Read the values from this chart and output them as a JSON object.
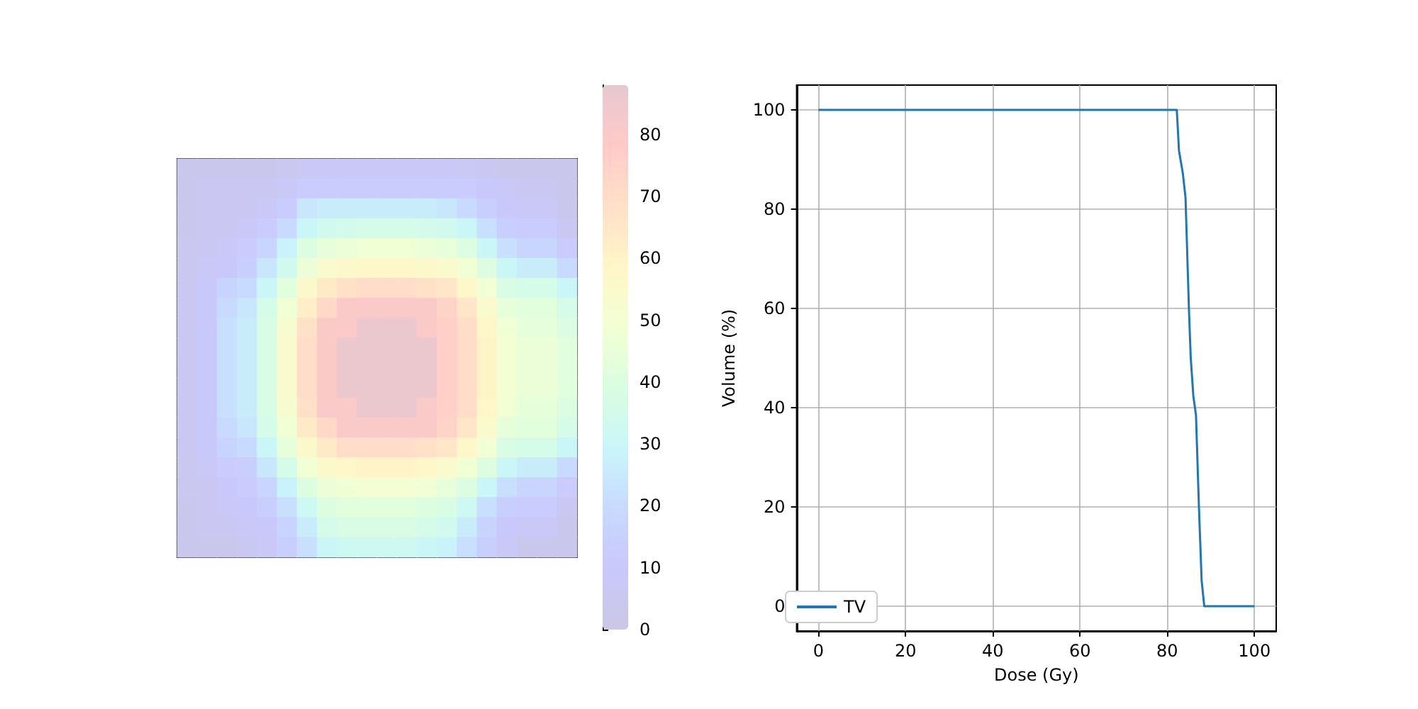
{
  "chart_data": [
    {
      "type": "heatmap",
      "categories": [
        null,
        null,
        null,
        null,
        null,
        null,
        null,
        null,
        null,
        null,
        null,
        null,
        null,
        null,
        null,
        null,
        null,
        null,
        null,
        null
      ],
      "y_categories": [
        null,
        null,
        null,
        null,
        null,
        null,
        null,
        null,
        null,
        null,
        null,
        null,
        null,
        null,
        null,
        null,
        null,
        null,
        null,
        null
      ],
      "clim": [
        0,
        88
      ],
      "cticks": [
        0,
        10,
        20,
        30,
        40,
        50,
        60,
        70,
        80
      ],
      "cells": [
        [
          4,
          4,
          4,
          4,
          4,
          5,
          7,
          8,
          8,
          8,
          8,
          8,
          8,
          8,
          7,
          6,
          4,
          4,
          4,
          4
        ],
        [
          4,
          6,
          6,
          6,
          6,
          8,
          12,
          12,
          12,
          12,
          12,
          12,
          12,
          12,
          12,
          10,
          8,
          6,
          6,
          4
        ],
        [
          4,
          6,
          6,
          6,
          8,
          12,
          24,
          26,
          26,
          26,
          26,
          26,
          26,
          24,
          20,
          14,
          10,
          8,
          8,
          4
        ],
        [
          4,
          6,
          6,
          8,
          12,
          20,
          30,
          34,
          35,
          36,
          36,
          36,
          35,
          34,
          30,
          22,
          14,
          12,
          12,
          6
        ],
        [
          5,
          6,
          8,
          12,
          18,
          28,
          40,
          44,
          46,
          48,
          48,
          48,
          46,
          44,
          40,
          30,
          22,
          18,
          18,
          12
        ],
        [
          5,
          8,
          10,
          14,
          24,
          34,
          46,
          54,
          56,
          58,
          58,
          58,
          56,
          54,
          48,
          40,
          30,
          26,
          26,
          20
        ],
        [
          6,
          10,
          16,
          20,
          30,
          42,
          56,
          64,
          68,
          70,
          70,
          70,
          68,
          66,
          58,
          48,
          38,
          36,
          36,
          30
        ],
        [
          6,
          10,
          20,
          24,
          36,
          48,
          62,
          72,
          80,
          80,
          80,
          80,
          80,
          74,
          66,
          54,
          44,
          42,
          42,
          36
        ],
        [
          6,
          10,
          22,
          26,
          38,
          52,
          68,
          80,
          80,
          86,
          86,
          86,
          80,
          76,
          70,
          58,
          48,
          44,
          44,
          40
        ],
        [
          6,
          10,
          22,
          26,
          38,
          54,
          70,
          80,
          86,
          86,
          86,
          86,
          86,
          76,
          70,
          60,
          50,
          46,
          46,
          42
        ],
        [
          6,
          10,
          22,
          26,
          38,
          54,
          70,
          80,
          86,
          86,
          86,
          86,
          86,
          76,
          70,
          60,
          50,
          46,
          46,
          42
        ],
        [
          6,
          10,
          22,
          26,
          38,
          54,
          70,
          80,
          86,
          86,
          86,
          86,
          86,
          76,
          70,
          60,
          50,
          46,
          46,
          42
        ],
        [
          6,
          10,
          22,
          26,
          38,
          52,
          68,
          80,
          80,
          86,
          86,
          86,
          80,
          76,
          70,
          58,
          48,
          44,
          44,
          40
        ],
        [
          6,
          10,
          20,
          24,
          36,
          48,
          64,
          72,
          80,
          80,
          80,
          80,
          80,
          74,
          66,
          54,
          44,
          42,
          42,
          36
        ],
        [
          6,
          10,
          16,
          20,
          30,
          44,
          56,
          64,
          70,
          70,
          70,
          70,
          68,
          66,
          58,
          48,
          38,
          36,
          36,
          30
        ],
        [
          5,
          8,
          12,
          14,
          24,
          36,
          48,
          56,
          58,
          60,
          60,
          60,
          58,
          54,
          48,
          40,
          30,
          26,
          26,
          20
        ],
        [
          5,
          6,
          10,
          12,
          18,
          28,
          40,
          46,
          48,
          50,
          50,
          50,
          48,
          44,
          40,
          30,
          22,
          18,
          18,
          12
        ],
        [
          4,
          6,
          8,
          10,
          14,
          22,
          32,
          40,
          42,
          42,
          42,
          42,
          40,
          38,
          32,
          22,
          14,
          12,
          12,
          6
        ],
        [
          4,
          6,
          6,
          8,
          10,
          16,
          26,
          36,
          38,
          38,
          38,
          38,
          36,
          34,
          26,
          16,
          10,
          8,
          8,
          4
        ],
        [
          4,
          4,
          4,
          6,
          8,
          14,
          22,
          30,
          32,
          32,
          32,
          32,
          30,
          28,
          22,
          14,
          8,
          4,
          4,
          4
        ]
      ]
    },
    {
      "type": "line",
      "xlabel": "Dose (Gy)",
      "ylabel": "Volume (%)",
      "xlim": [
        -5,
        105
      ],
      "ylim": [
        -5,
        105
      ],
      "xticks": [
        0,
        20,
        40,
        60,
        80,
        100
      ],
      "yticks": [
        0,
        20,
        40,
        60,
        80,
        100
      ],
      "grid": true,
      "legend": "bottom left",
      "x": [
        0,
        82.2,
        82.7,
        83.6,
        84.2,
        85.0,
        85.4,
        86.0,
        86.6,
        87.3,
        87.9,
        88.5,
        100
      ],
      "series": [
        {
          "name": "TV",
          "color": "#1f77b4",
          "values": [
            100,
            100,
            91.8,
            87.1,
            82.3,
            59.4,
            50,
            42.3,
            38.5,
            19.4,
            5.1,
            0,
            0
          ]
        }
      ]
    }
  ]
}
